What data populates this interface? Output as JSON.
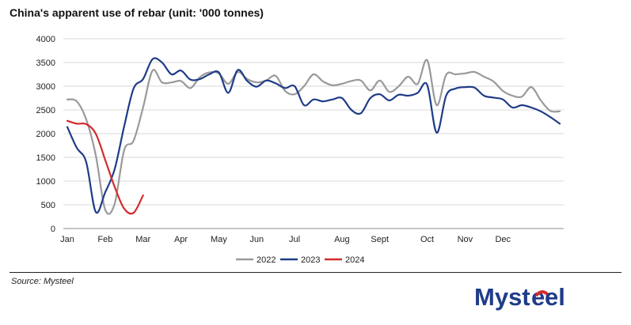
{
  "title": "China's apparent use of rebar (unit: '000 tonnes)",
  "source": "Source: Mysteel",
  "logo_text": "Mysteel",
  "colors": {
    "2022": "#9a9a9a",
    "2023": "#1f3c88",
    "2024": "#d42b2b",
    "logo": "#1f3c88",
    "logo_accent": "#d42b2b"
  },
  "chart_data": {
    "type": "line",
    "title": "China's apparent use of rebar (unit: '000 tonnes)",
    "xlabel": "",
    "ylabel": "",
    "ylim": [
      0,
      4000
    ],
    "yticks": [
      "0",
      "500",
      "1000",
      "1500",
      "2000",
      "2500",
      "3000",
      "3500",
      "4000"
    ],
    "x_ticks": [
      {
        "label": "Jan",
        "week": 1
      },
      {
        "label": "Feb",
        "week": 5
      },
      {
        "label": "Mar",
        "week": 9
      },
      {
        "label": "Apr",
        "week": 13
      },
      {
        "label": "May",
        "week": 17
      },
      {
        "label": "Jun",
        "week": 21
      },
      {
        "label": "Jul",
        "week": 25
      },
      {
        "label": "Aug",
        "week": 30
      },
      {
        "label": "Sept",
        "week": 34
      },
      {
        "label": "Oct",
        "week": 39
      },
      {
        "label": "Nov",
        "week": 43
      },
      {
        "label": "Dec",
        "week": 47
      }
    ],
    "xlim": [
      1,
      53
    ],
    "grid": true,
    "legend_position": "bottom",
    "series": [
      {
        "name": "2022",
        "weeks": [
          1,
          2,
          3,
          4,
          5,
          6,
          7,
          8,
          9,
          10,
          11,
          12,
          13,
          14,
          15,
          16,
          17,
          18,
          19,
          20,
          21,
          22,
          23,
          24,
          25,
          26,
          27,
          28,
          29,
          30,
          31,
          32,
          33,
          34,
          35,
          36,
          37,
          38,
          39,
          40,
          41,
          42,
          43,
          44,
          45,
          46,
          47,
          48,
          49,
          50,
          51,
          52,
          53
        ],
        "values": [
          2720,
          2680,
          2300,
          1550,
          400,
          520,
          1650,
          1850,
          2550,
          3330,
          3080,
          3080,
          3110,
          2960,
          3190,
          3290,
          3270,
          3050,
          3300,
          3150,
          3080,
          3120,
          3220,
          2900,
          2830,
          3000,
          3250,
          3100,
          3020,
          3050,
          3110,
          3120,
          2910,
          3120,
          2880,
          3000,
          3200,
          3050,
          3550,
          2600,
          3240,
          3250,
          3270,
          3300,
          3200,
          3100,
          2900,
          2800,
          2780,
          2980,
          2700,
          2480,
          2470
        ],
        "color": "#9a9a9a"
      },
      {
        "name": "2023",
        "weeks": [
          1,
          2,
          3,
          4,
          5,
          6,
          7,
          8,
          9,
          10,
          11,
          12,
          13,
          14,
          15,
          16,
          17,
          18,
          19,
          20,
          21,
          22,
          23,
          24,
          25,
          26,
          27,
          28,
          29,
          30,
          31,
          32,
          33,
          34,
          35,
          36,
          37,
          38,
          39,
          40,
          41,
          42,
          43,
          44,
          45,
          46,
          47,
          48,
          49,
          50,
          51,
          52,
          53
        ],
        "values": [
          2140,
          1700,
          1400,
          350,
          760,
          1250,
          2150,
          2950,
          3150,
          3570,
          3500,
          3250,
          3330,
          3140,
          3150,
          3250,
          3290,
          2860,
          3340,
          3110,
          2990,
          3120,
          3060,
          2960,
          3000,
          2600,
          2720,
          2680,
          2720,
          2750,
          2500,
          2430,
          2750,
          2830,
          2700,
          2820,
          2800,
          2860,
          3030,
          2020,
          2800,
          2950,
          2980,
          2970,
          2800,
          2760,
          2720,
          2550,
          2600,
          2550,
          2470,
          2350,
          2210
        ],
        "color": "#1f3c88"
      },
      {
        "name": "2024",
        "weeks": [
          1,
          2,
          3,
          4,
          5,
          6,
          7,
          8,
          9
        ],
        "values": [
          2270,
          2210,
          2200,
          2000,
          1450,
          880,
          420,
          330,
          700
        ],
        "color": "#d42b2b"
      }
    ]
  }
}
